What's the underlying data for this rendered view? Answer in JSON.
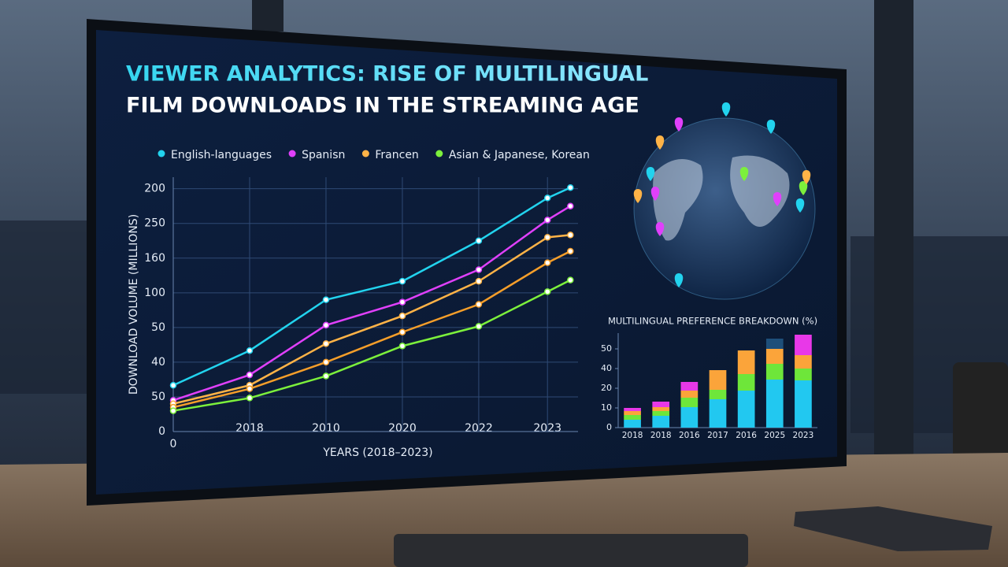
{
  "header": {
    "title": [
      "VIEWER ANALYTICS: RISE OF MULTILINGUAL",
      "FILM DOWNLOADS IN THE STREAMING AGE"
    ]
  },
  "chart_data": [
    {
      "type": "line",
      "y_label": "DOWNLOAD VOLUME (MILLIONS)",
      "x_label": "YEARS (2018–2023)",
      "x": [
        0,
        1,
        2,
        3,
        4,
        4.9,
        5.2
      ],
      "xlim": [
        0,
        5.3
      ],
      "xticks": [
        {
          "value": 0,
          "label": "0"
        },
        {
          "value": 1,
          "label": "2018"
        },
        {
          "value": 2,
          "label": "2010"
        },
        {
          "value": 3,
          "label": "2020"
        },
        {
          "value": 4,
          "label": "2022"
        },
        {
          "value": 4.9,
          "label": "2023"
        }
      ],
      "ylim": [
        0,
        220
      ],
      "yticks": [
        0,
        {
          "value": 30,
          "label": "50"
        },
        {
          "value": 60,
          "label": "40"
        },
        {
          "value": 90,
          "label": "50"
        },
        {
          "value": 120,
          "label": "100"
        },
        {
          "value": 150,
          "label": "160"
        },
        {
          "value": 180,
          "label": "250"
        },
        {
          "value": 210,
          "label": "200"
        }
      ],
      "grid": true,
      "series": [
        {
          "name": "English-languages",
          "color": "#22d3ee",
          "values": [
            40,
            70,
            114,
            130,
            165,
            202,
            211
          ]
        },
        {
          "name": "Spanisn",
          "color": "#e040fb",
          "values": [
            27,
            49,
            92,
            112,
            140,
            183,
            195
          ]
        },
        {
          "name": "Francen",
          "color": "#ffb347",
          "values": [
            24,
            40,
            76,
            100,
            130,
            168,
            170
          ]
        },
        {
          "color": "#f59e2a",
          "values": [
            21,
            37,
            60,
            86,
            110,
            146,
            156
          ]
        },
        {
          "name": "Asian & Japanese, Korean",
          "color": "#7cf03c",
          "values": [
            18,
            29,
            48,
            74,
            91,
            121,
            131
          ]
        }
      ]
    },
    {
      "type": "stacked_bar",
      "title": "MULTILINGUAL PREFERENCE BREAKDOWN (%)",
      "categories": [
        "2018",
        "2018",
        "2016",
        "2017",
        "2016",
        "2025",
        "2023"
      ],
      "ylim": [
        0,
        60
      ],
      "yticks": [
        0,
        {
          "value": 12.5,
          "label": "10"
        },
        {
          "value": 25,
          "label": "20"
        },
        {
          "value": 37.5,
          "label": "40"
        },
        50
      ],
      "series": [
        {
          "color": "#22c8f0",
          "values": [
            5,
            7.5,
            13,
            18,
            23.5,
            30.5,
            30
          ]
        },
        {
          "color": "#6ee63a",
          "values": [
            3,
            3,
            6,
            6,
            10.5,
            10,
            7.5
          ]
        },
        {
          "color": "#fba43a",
          "values": [
            2.5,
            2.5,
            4.5,
            12.5,
            15,
            9.5,
            8.5
          ]
        },
        {
          "color": "#e838e8",
          "values": [
            2,
            3.5,
            5.5,
            0,
            0,
            0,
            13
          ]
        },
        {
          "color": "#1e4f7a",
          "values": [
            0,
            0,
            0,
            0,
            0,
            6.5,
            0
          ]
        }
      ]
    }
  ]
}
